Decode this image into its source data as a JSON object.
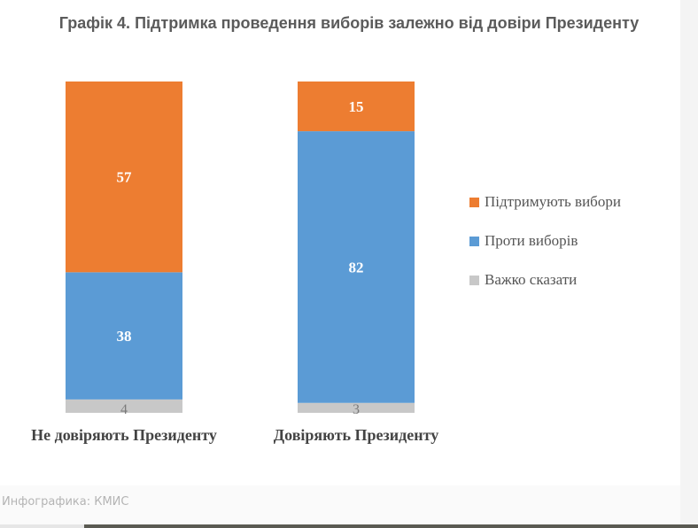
{
  "chart_data": {
    "type": "bar",
    "stacked": true,
    "title": "Графік 4. Підтримка проведення виборів залежно від довіри Президенту",
    "categories": [
      "Не довіряють Президенту",
      "Довіряють Президенту"
    ],
    "ylim": [
      0,
      100
    ],
    "grid": false,
    "legend_position": "right",
    "series": [
      {
        "name": "Важко сказати",
        "color": "#c8c8c8",
        "values": [
          4,
          3
        ]
      },
      {
        "name": "Проти виборів",
        "color": "#5b9bd5",
        "values": [
          38,
          82
        ]
      },
      {
        "name": "Підтримують вибори",
        "color": "#ed7d31",
        "values": [
          57,
          15
        ]
      }
    ]
  },
  "legend": [
    {
      "label": "Підтримують вибори",
      "color": "#ed7d31",
      "icon": "orange-square"
    },
    {
      "label": "Проти виборів",
      "color": "#5b9bd5",
      "icon": "blue-square"
    },
    {
      "label": "Важко сказати",
      "color": "#c8c8c8",
      "icon": "gray-square"
    }
  ],
  "source": "Инфографика: КМИС"
}
